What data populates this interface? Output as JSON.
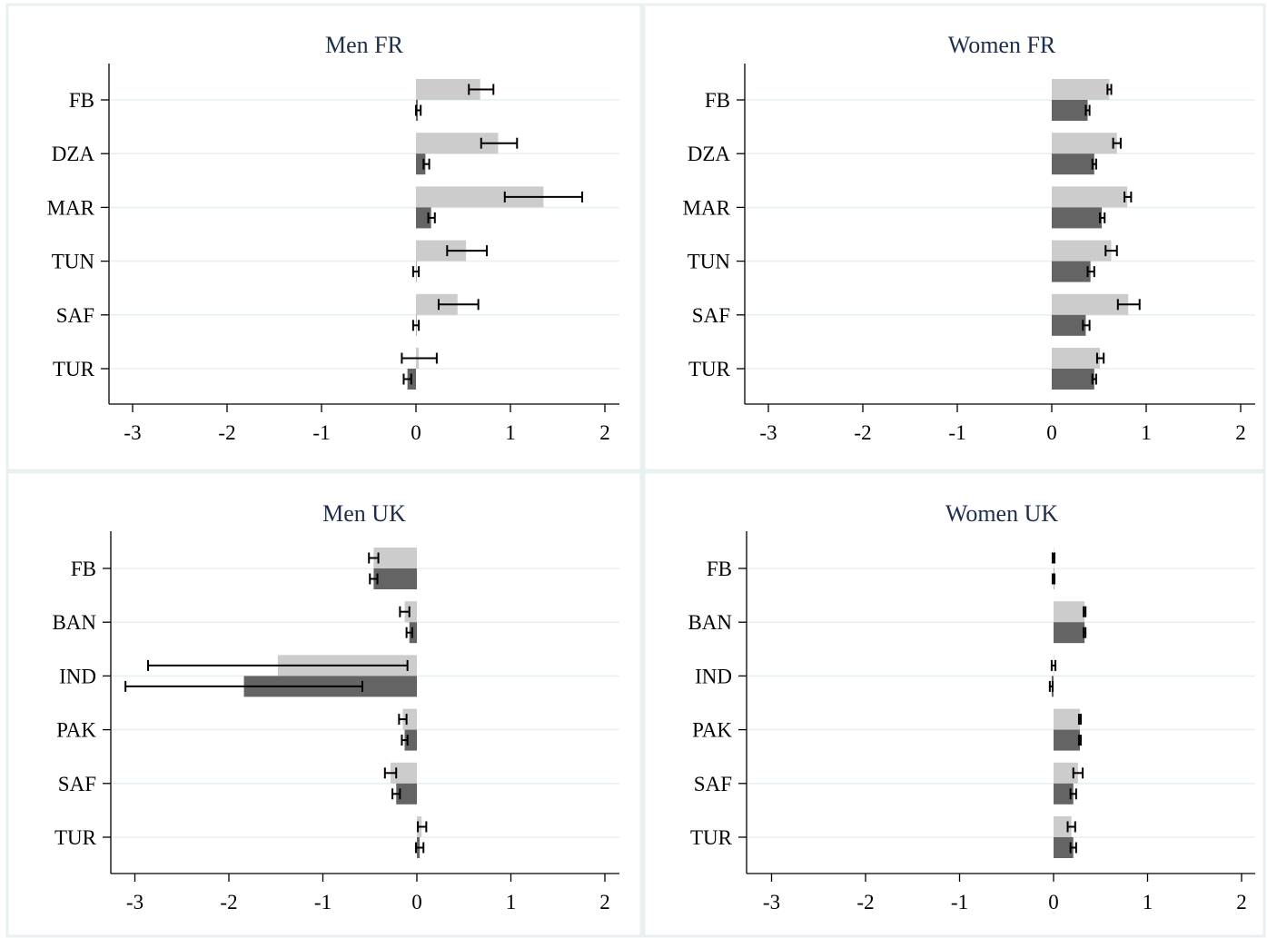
{
  "colors": {
    "series1_fill": "#cccccc",
    "series1_stroke": "#c4c4c4",
    "series2_fill": "#646464",
    "series2_stroke": "#3a3a3a",
    "grid": "#e6f0f0",
    "title": "#1f2d4d"
  },
  "chart_data": [
    {
      "type": "bar",
      "orientation": "horizontal",
      "title": "Men FR",
      "categories": [
        "FB",
        "DZA",
        "MAR",
        "TUN",
        "SAF",
        "TUR"
      ],
      "xlim": [
        -3,
        2
      ],
      "xticks": [
        "-3",
        "-2",
        "-1",
        "0",
        "1",
        "2"
      ],
      "grid": true,
      "series": [
        {
          "values": [
            0.68,
            0.87,
            1.35,
            0.53,
            0.44,
            0.03
          ],
          "ci_low": [
            0.56,
            0.69,
            0.94,
            0.33,
            0.24,
            -0.15
          ],
          "ci_high": [
            0.82,
            1.07,
            1.76,
            0.75,
            0.66,
            0.22
          ]
        },
        {
          "values": [
            0.02,
            0.1,
            0.16,
            0.0,
            0.0,
            -0.09
          ],
          "ci_low": [
            0.0,
            0.08,
            0.13,
            -0.03,
            -0.03,
            -0.13
          ],
          "ci_high": [
            0.05,
            0.14,
            0.2,
            0.03,
            0.03,
            -0.05
          ]
        }
      ]
    },
    {
      "type": "bar",
      "orientation": "horizontal",
      "title": "Women FR",
      "categories": [
        "FB",
        "DZA",
        "MAR",
        "TUN",
        "SAF",
        "TUR"
      ],
      "xlim": [
        -3,
        2
      ],
      "xticks": [
        "-3",
        "-2",
        "-1",
        "0",
        "1",
        "2"
      ],
      "grid": true,
      "series": [
        {
          "values": [
            0.61,
            0.69,
            0.8,
            0.63,
            0.81,
            0.51
          ],
          "ci_low": [
            0.59,
            0.65,
            0.77,
            0.57,
            0.7,
            0.48
          ],
          "ci_high": [
            0.63,
            0.73,
            0.84,
            0.69,
            0.93,
            0.55
          ]
        },
        {
          "values": [
            0.38,
            0.45,
            0.53,
            0.41,
            0.36,
            0.45
          ],
          "ci_low": [
            0.36,
            0.43,
            0.51,
            0.38,
            0.33,
            0.43
          ],
          "ci_high": [
            0.4,
            0.47,
            0.56,
            0.45,
            0.4,
            0.47
          ]
        }
      ]
    },
    {
      "type": "bar",
      "orientation": "horizontal",
      "title": "Men UK",
      "categories": [
        "FB",
        "BAN",
        "IND",
        "PAK",
        "SAF",
        "TUR"
      ],
      "xlim": [
        -3,
        2
      ],
      "xticks": [
        "-3",
        "-2",
        "-1",
        "0",
        "1",
        "2"
      ],
      "grid": true,
      "series": [
        {
          "values": [
            -0.46,
            -0.13,
            -1.48,
            -0.15,
            -0.28,
            0.05
          ],
          "ci_low": [
            -0.51,
            -0.18,
            -2.86,
            -0.19,
            -0.34,
            0.01
          ],
          "ci_high": [
            -0.41,
            -0.08,
            -0.1,
            -0.11,
            -0.22,
            0.1
          ]
        },
        {
          "values": [
            -0.46,
            -0.08,
            -1.84,
            -0.13,
            -0.22,
            0.03
          ],
          "ci_low": [
            -0.5,
            -0.11,
            -3.1,
            -0.16,
            -0.26,
            -0.01
          ],
          "ci_high": [
            -0.42,
            -0.05,
            -0.58,
            -0.1,
            -0.18,
            0.07
          ]
        }
      ]
    },
    {
      "type": "bar",
      "orientation": "horizontal",
      "title": "Women UK",
      "categories": [
        "FB",
        "BAN",
        "IND",
        "PAK",
        "SAF",
        "TUR"
      ],
      "xlim": [
        -3,
        2
      ],
      "xticks": [
        "-3",
        "-2",
        "-1",
        "0",
        "1",
        "2"
      ],
      "grid": true,
      "series": [
        {
          "values": [
            0.0,
            0.33,
            0.0,
            0.28,
            0.26,
            0.19
          ],
          "ci_low": [
            -0.01,
            0.32,
            -0.02,
            0.27,
            0.21,
            0.15
          ],
          "ci_high": [
            0.01,
            0.34,
            0.02,
            0.29,
            0.31,
            0.23
          ]
        },
        {
          "values": [
            0.0,
            0.33,
            -0.02,
            0.28,
            0.21,
            0.21
          ],
          "ci_low": [
            -0.01,
            0.32,
            -0.04,
            0.27,
            0.18,
            0.18
          ],
          "ci_high": [
            0.01,
            0.34,
            -0.01,
            0.29,
            0.24,
            0.24
          ]
        }
      ]
    }
  ]
}
